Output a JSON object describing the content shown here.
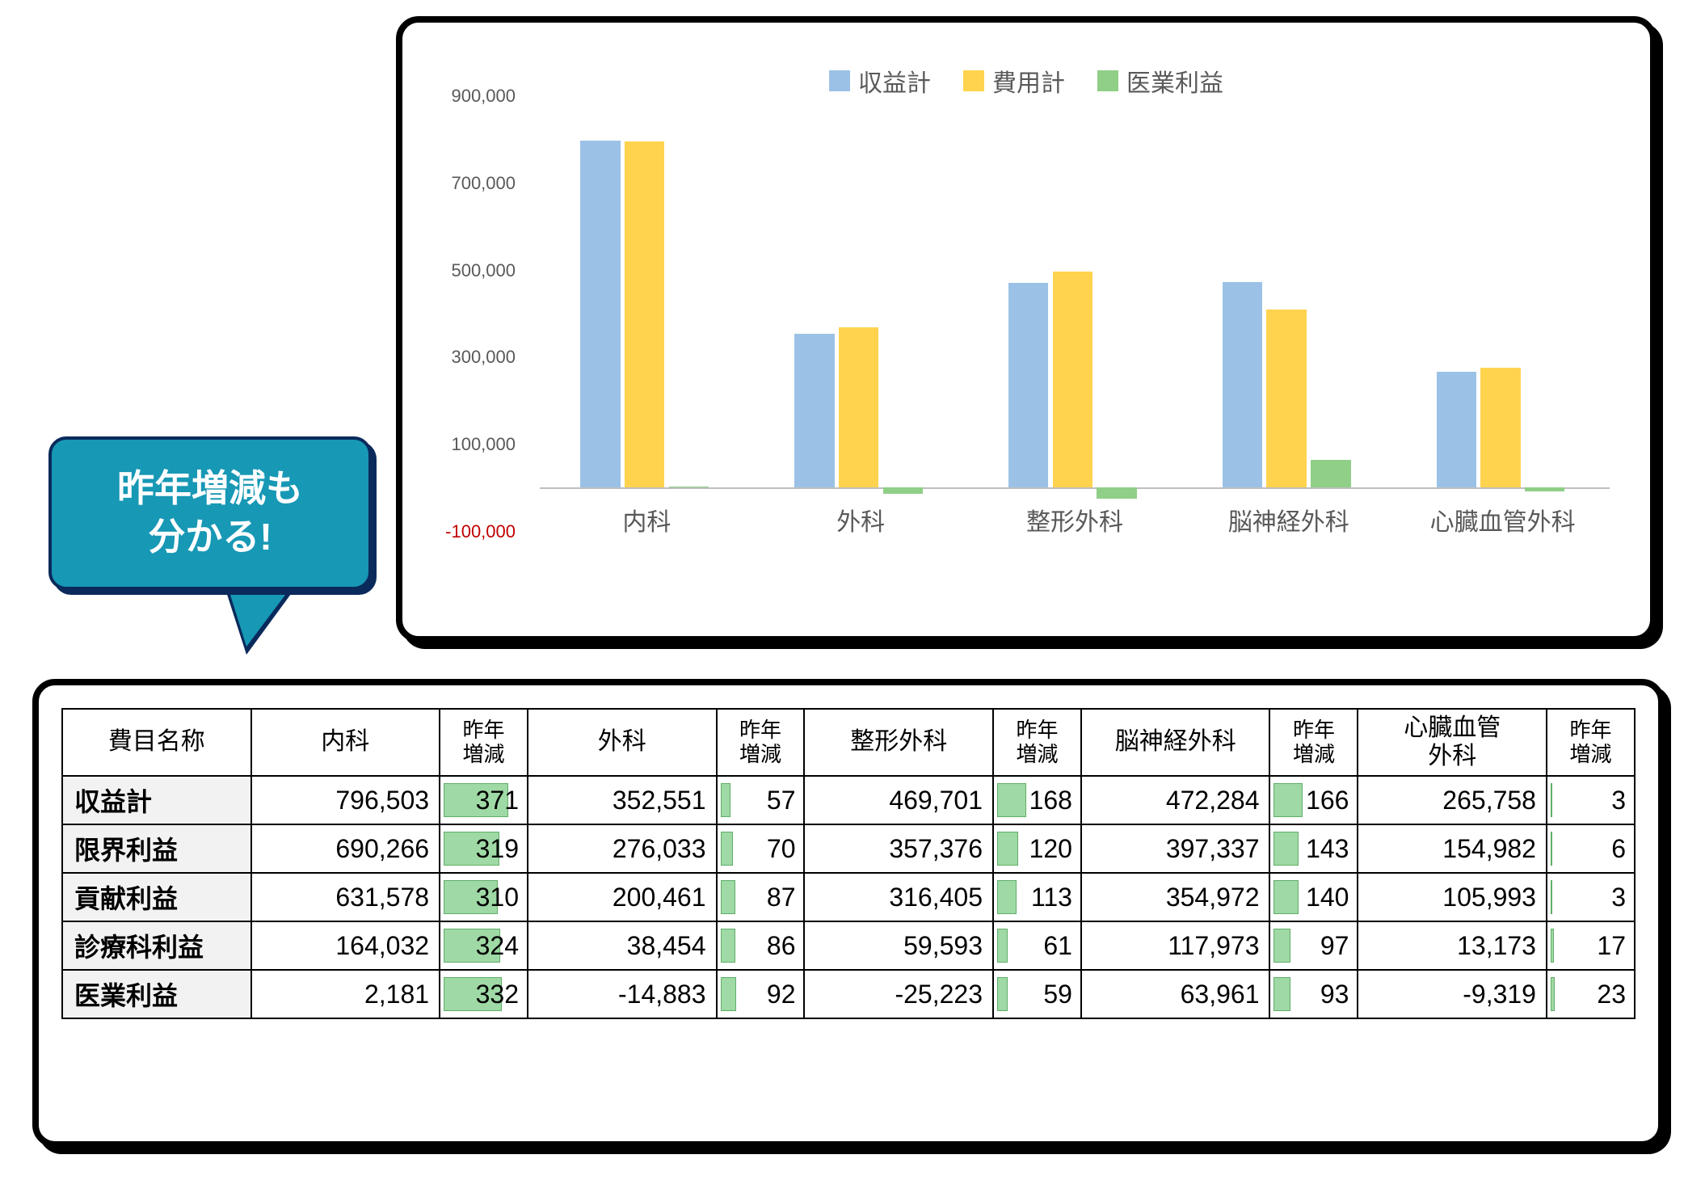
{
  "callout": {
    "line1": "昨年増減も",
    "line2": "分かる!",
    "bg_color": "#1798b5",
    "border_color": "#0a2a5c",
    "text_color": "#ffffff"
  },
  "chart": {
    "type": "bar",
    "background_color": "#ffffff",
    "categories": [
      "内科",
      "外科",
      "整形外科",
      "脳神経外科",
      "心臓血管外科"
    ],
    "series": [
      {
        "name": "収益計",
        "color": "#9bc2e6",
        "values": [
          796503,
          352551,
          469701,
          472284,
          265758
        ]
      },
      {
        "name": "費用計",
        "color": "#ffd34e",
        "values": [
          794322,
          367434,
          494924,
          408323,
          275077
        ]
      },
      {
        "name": "医業利益",
        "color": "#8fcf87",
        "values": [
          2181,
          -14883,
          -25223,
          63961,
          -9319
        ]
      }
    ],
    "ylim": [
      -100000,
      900000
    ],
    "ytick_step": 200000,
    "ytick_labels": [
      "-100,000",
      "100,000",
      "300,000",
      "500,000",
      "700,000",
      "900,000"
    ],
    "neg_label_color": "#c00000",
    "axis_label_color": "#595959",
    "tick_fontsize": 22,
    "xlabel_fontsize": 30,
    "legend_fontsize": 30,
    "bar_group_width": 0.62,
    "bar_gap": 0.02
  },
  "table": {
    "header": {
      "item_label": "費目名称",
      "yoy_label": "昨年<br>増減",
      "departments": [
        "内科",
        "外科",
        "整形外科",
        "脳神経外科",
        "心臓血管<br>外科"
      ]
    },
    "row_header_bg": "#f2f2f2",
    "yoy_bar_color": "#9fd9a5",
    "yoy_bar_border": "#5fae68",
    "yoy_max_ref": 371,
    "rows": [
      {
        "label": "収益計",
        "cells": [
          {
            "v": "796,503",
            "yoy": 371
          },
          {
            "v": "352,551",
            "yoy": 57
          },
          {
            "v": "469,701",
            "yoy": 168
          },
          {
            "v": "472,284",
            "yoy": 166
          },
          {
            "v": "265,758",
            "yoy": 3
          }
        ]
      },
      {
        "label": "限界利益",
        "cells": [
          {
            "v": "690,266",
            "yoy": 319
          },
          {
            "v": "276,033",
            "yoy": 70
          },
          {
            "v": "357,376",
            "yoy": 120
          },
          {
            "v": "397,337",
            "yoy": 143
          },
          {
            "v": "154,982",
            "yoy": 6
          }
        ]
      },
      {
        "label": "貢献利益",
        "cells": [
          {
            "v": "631,578",
            "yoy": 310
          },
          {
            "v": "200,461",
            "yoy": 87
          },
          {
            "v": "316,405",
            "yoy": 113
          },
          {
            "v": "354,972",
            "yoy": 140
          },
          {
            "v": "105,993",
            "yoy": 3
          }
        ]
      },
      {
        "label": "診療科利益",
        "cells": [
          {
            "v": "164,032",
            "yoy": 324
          },
          {
            "v": "38,454",
            "yoy": 86
          },
          {
            "v": "59,593",
            "yoy": 61
          },
          {
            "v": "117,973",
            "yoy": 97
          },
          {
            "v": "13,173",
            "yoy": 17
          }
        ]
      },
      {
        "label": "医業利益",
        "cells": [
          {
            "v": "2,181",
            "yoy": 332
          },
          {
            "v": "-14,883",
            "yoy": 92
          },
          {
            "v": "-25,223",
            "yoy": 59
          },
          {
            "v": "63,961",
            "yoy": 93
          },
          {
            "v": "-9,319",
            "yoy": 23
          }
        ]
      }
    ],
    "col_widths": {
      "item": "12%",
      "value": "12%",
      "yoy": "5.6%"
    }
  }
}
